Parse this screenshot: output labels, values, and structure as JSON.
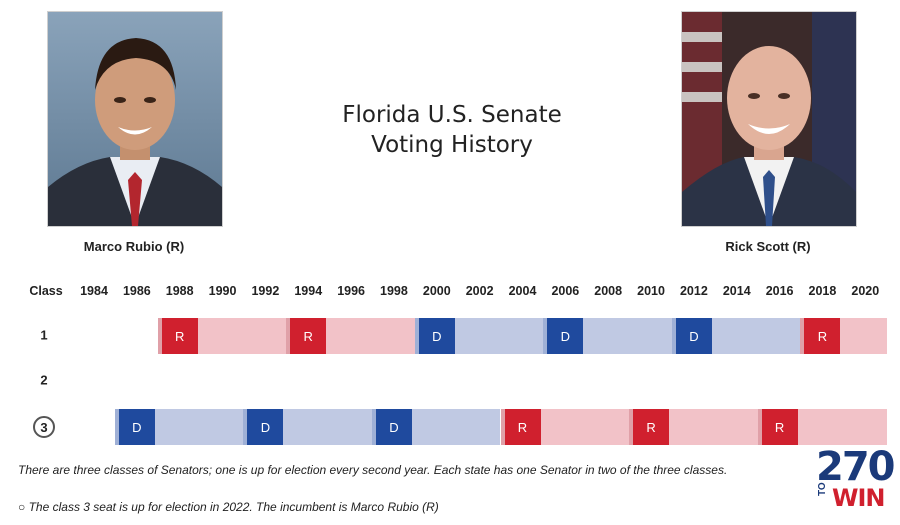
{
  "title": {
    "line1": "Florida U.S. Senate",
    "line2": "Voting History"
  },
  "senators": [
    {
      "name": "Marco Rubio (R)"
    },
    {
      "name": "Rick Scott (R)"
    }
  ],
  "grid": {
    "class_header": "Class",
    "years": [
      "1984",
      "1986",
      "1988",
      "1990",
      "1992",
      "1994",
      "1996",
      "1998",
      "2000",
      "2002",
      "2004",
      "2006",
      "2008",
      "2010",
      "2012",
      "2014",
      "2016",
      "2018",
      "2020"
    ],
    "rows": [
      {
        "label": "1",
        "results": [
          {
            "year": "1988",
            "party": "R"
          },
          {
            "year": "1994",
            "party": "R"
          },
          {
            "year": "2000",
            "party": "D"
          },
          {
            "year": "2006",
            "party": "D"
          },
          {
            "year": "2012",
            "party": "D"
          },
          {
            "year": "2018",
            "party": "R"
          }
        ]
      },
      {
        "label": "2",
        "results": []
      },
      {
        "label": "3",
        "results": [
          {
            "year": "1986",
            "party": "D"
          },
          {
            "year": "1992",
            "party": "D"
          },
          {
            "year": "1998",
            "party": "D"
          },
          {
            "year": "2004",
            "party": "R"
          },
          {
            "year": "2010",
            "party": "R"
          },
          {
            "year": "2016",
            "party": "R"
          }
        ]
      }
    ]
  },
  "colors": {
    "republican": "#d0202e",
    "democrat": "#1f4a9e"
  },
  "footnotes": {
    "classes": "There are three classes of Senators; one is up for election every second year. Each state has one Senator in two of the three classes.",
    "next": "The class 3 seat is up for election in 2022. The incumbent is Marco Rubio (R)"
  },
  "logo": {
    "number": "270",
    "to": "TO",
    "win": "WIN"
  }
}
